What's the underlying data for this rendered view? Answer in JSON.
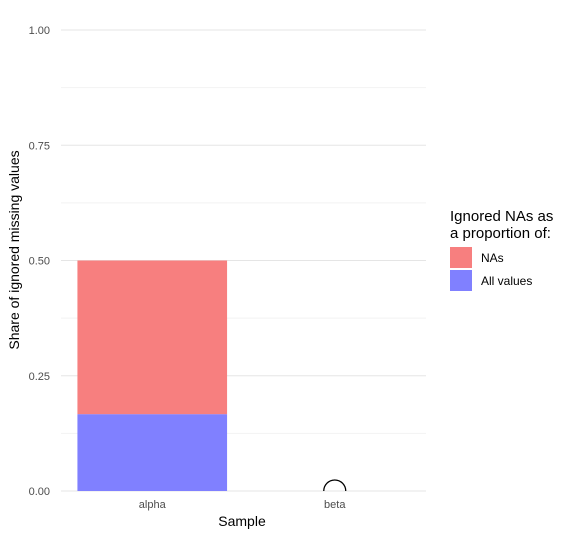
{
  "chart_data": {
    "type": "bar",
    "stacked": true,
    "title": "",
    "xlabel": "Sample",
    "ylabel": "Share of ignored missing values",
    "categories": [
      "alpha",
      "beta"
    ],
    "ylim": [
      0,
      1
    ],
    "yticks": [
      "0.00",
      "0.25",
      "0.50",
      "0.75",
      "1.00"
    ],
    "grid": true,
    "legend": {
      "title_line1": "Ignored NAs as",
      "title_line2": "a proportion of:",
      "placement": "right"
    },
    "series": [
      {
        "name": "All values",
        "color": "#8080ff",
        "values": [
          0.1667,
          0
        ]
      },
      {
        "name": "NAs",
        "color": "#f77f7f",
        "values": [
          0.3333,
          0
        ]
      }
    ],
    "markers": [
      {
        "category": "beta",
        "shape": "open-semicircle",
        "value": 0
      }
    ]
  }
}
